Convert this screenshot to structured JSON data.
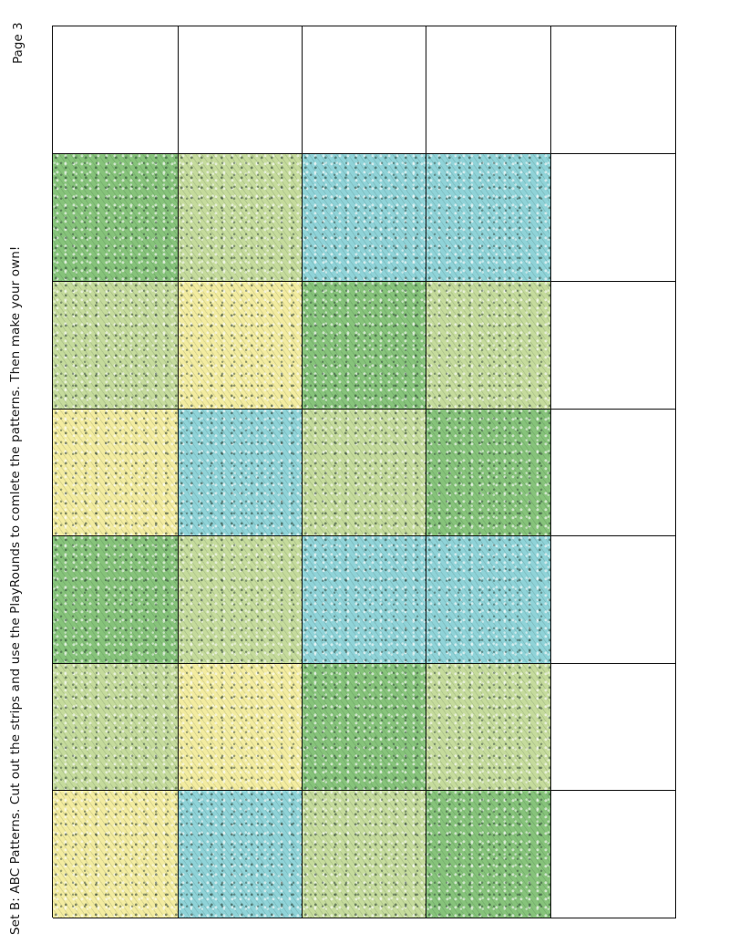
{
  "caption": "Set B: ABC Patterns. Cut out the strips and use the PlayRounds to comlete the patterns. Then make your own!",
  "page_label": "Page 3",
  "colors": {
    "green": "#86c37a",
    "light_green": "#c5db9c",
    "yellow": "#f3eca0",
    "blue": "#8fd3d8",
    "empty": "#ffffff",
    "border": "#111111"
  },
  "rows": [
    [
      "empty",
      "empty",
      "empty",
      "empty",
      "empty"
    ],
    [
      "green",
      "light_green",
      "blue",
      "blue",
      "empty"
    ],
    [
      "light_green",
      "yellow",
      "green",
      "light_green",
      "empty"
    ],
    [
      "yellow",
      "blue",
      "light_green",
      "green",
      "empty"
    ],
    [
      "green",
      "light_green",
      "blue",
      "blue",
      "empty"
    ],
    [
      "light_green",
      "yellow",
      "green",
      "light_green",
      "empty"
    ],
    [
      "yellow",
      "blue",
      "light_green",
      "green",
      "empty"
    ]
  ]
}
